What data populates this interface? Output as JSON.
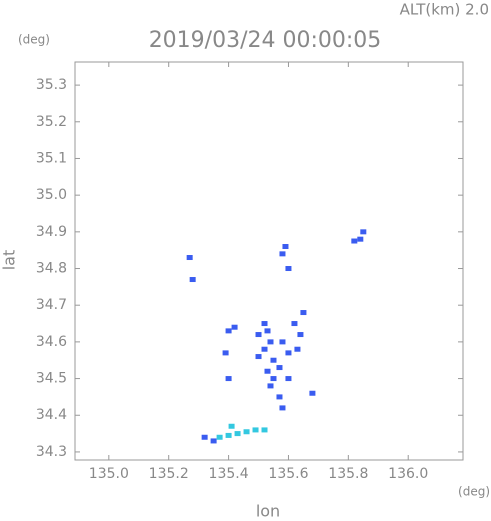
{
  "chart_data": {
    "type": "scatter",
    "title": "2019/03/24 00:00:05",
    "subtitle": "ALT(km) 2.0",
    "x_label": "lon",
    "y_label": "lat",
    "x_unit": "(deg)",
    "y_unit": "(deg)",
    "xlim": [
      134.887,
      136.183
    ],
    "ylim": [
      34.278,
      35.363
    ],
    "xticks": [
      {
        "value": 135,
        "label": "135.0"
      },
      135.2,
      135.4,
      135.6,
      135.8,
      {
        "value": 136,
        "label": "136.0"
      }
    ],
    "yticks": [
      34.3,
      34.4,
      34.5,
      34.6,
      34.7,
      34.8,
      34.9,
      {
        "value": 35,
        "label": "35.0"
      },
      35.1,
      35.2,
      35.3
    ],
    "series": [
      {
        "color": "#3a5cf0",
        "x": [
          135.82,
          135.84,
          135.85,
          135.59,
          135.58,
          135.28,
          135.27,
          135.6,
          135.4,
          135.42,
          135.39,
          135.52,
          135.53,
          135.54,
          135.52,
          135.55,
          135.53,
          135.55,
          135.54,
          135.57,
          135.58,
          135.6,
          135.62,
          135.64,
          135.65,
          135.63,
          135.5,
          135.57,
          135.58,
          135.6,
          135.68,
          135.4,
          135.5,
          135.32,
          135.35
        ],
        "y": [
          34.875,
          34.88,
          34.9,
          34.86,
          34.84,
          34.77,
          34.83,
          34.8,
          34.63,
          34.64,
          34.57,
          34.65,
          34.63,
          34.6,
          34.58,
          34.55,
          34.52,
          34.5,
          34.48,
          34.53,
          34.6,
          34.57,
          34.65,
          34.62,
          34.68,
          34.58,
          34.62,
          34.45,
          34.42,
          34.5,
          34.46,
          34.5,
          34.56,
          34.34,
          34.33
        ]
      },
      {
        "color": "#33c8e0",
        "x": [
          135.37,
          135.4,
          135.43,
          135.46,
          135.49,
          135.52,
          135.41
        ],
        "y": [
          34.34,
          34.345,
          34.35,
          34.355,
          34.36,
          34.36,
          34.37
        ]
      }
    ]
  }
}
